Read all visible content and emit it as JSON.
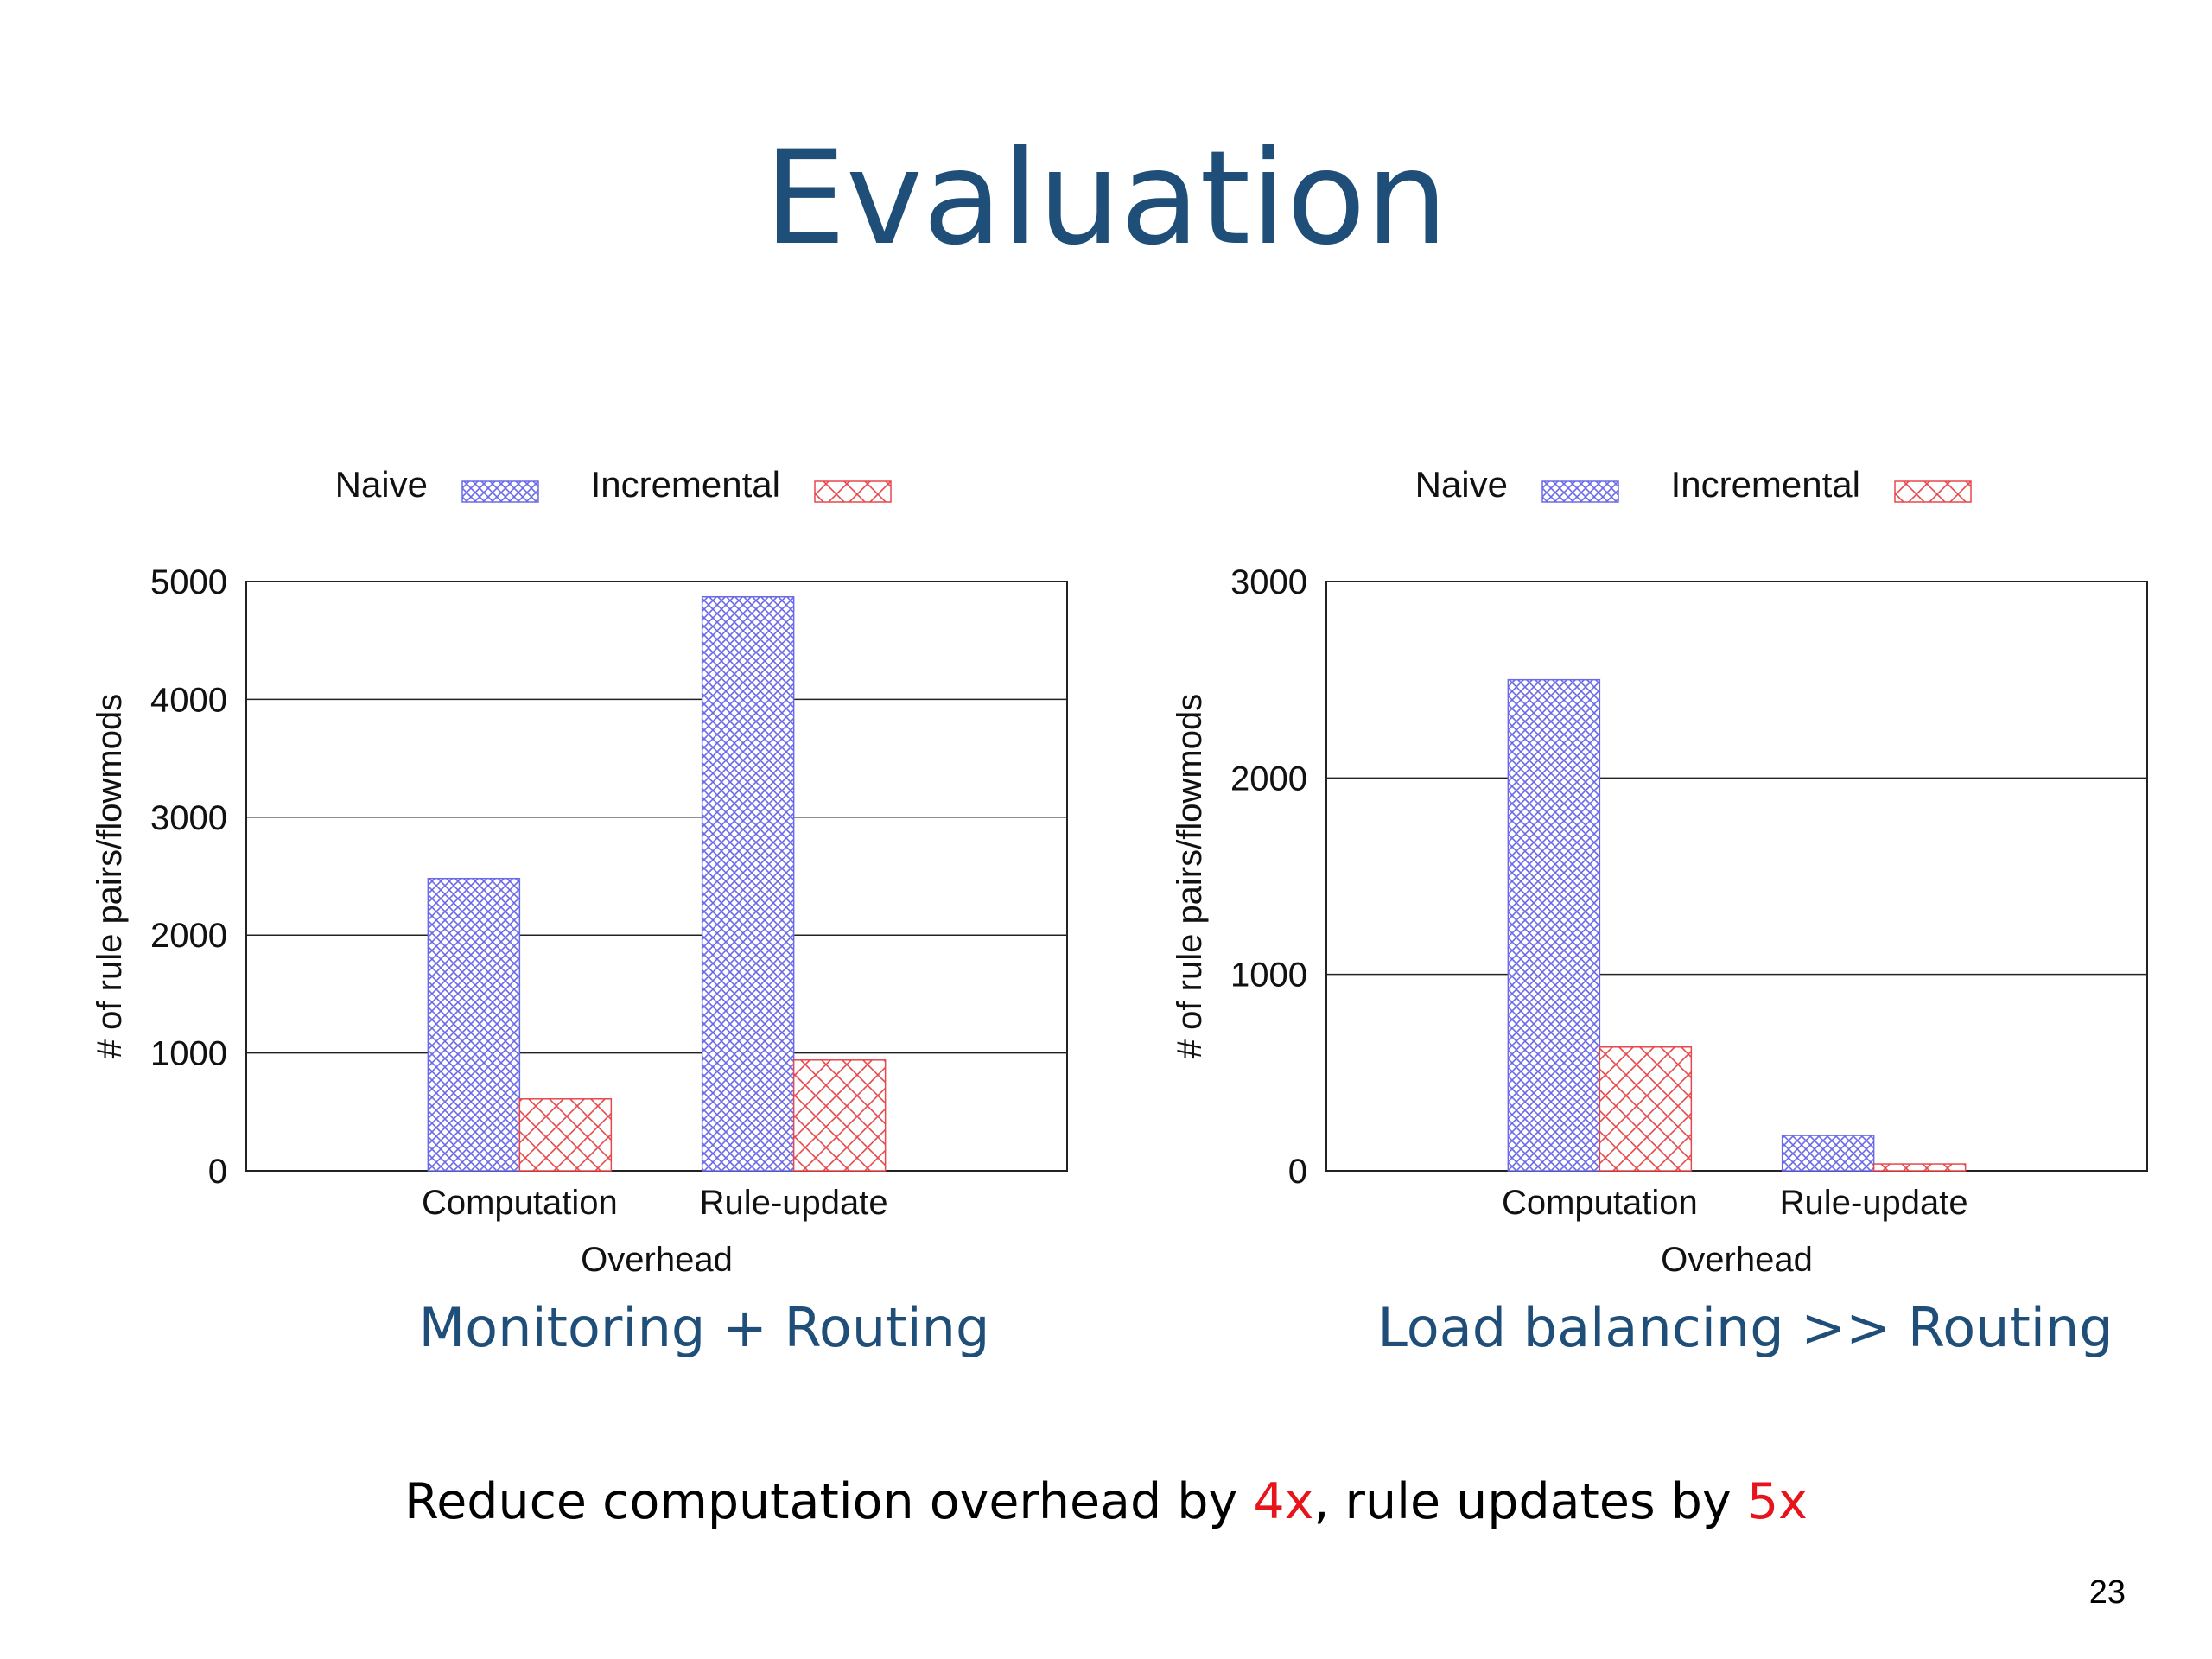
{
  "slide": {
    "title": "Evaluation",
    "summary_prefix": "Reduce computation overhead by ",
    "summary_value_1": "4x",
    "summary_middle": ", rule updates by ",
    "summary_value_2": "5x",
    "page_number": "23",
    "highlight_color": "#e8141b",
    "title_color": "#1f4e79"
  },
  "chart_data": [
    {
      "type": "bar",
      "caption": "Monitoring + Routing",
      "categories": [
        "Computation",
        "Rule-update"
      ],
      "series": [
        {
          "name": "Naive",
          "values": [
            2480,
            4870
          ],
          "color": "#6a6ae8",
          "pattern": "fine-crosshatch"
        },
        {
          "name": "Incremental",
          "values": [
            610,
            940
          ],
          "color": "#e8474b",
          "pattern": "coarse-crosshatch"
        }
      ],
      "xlabel": "Overhead",
      "ylabel": "# of rule pairs/flowmods",
      "ylim": [
        0,
        5000
      ],
      "yticks": [
        0,
        1000,
        2000,
        3000,
        4000,
        5000
      ],
      "grid": true,
      "legend": "top-center"
    },
    {
      "type": "bar",
      "caption": "Load balancing >> Routing",
      "categories": [
        "Computation",
        "Rule-update"
      ],
      "series": [
        {
          "name": "Naive",
          "values": [
            2500,
            180
          ],
          "color": "#6a6ae8",
          "pattern": "fine-crosshatch"
        },
        {
          "name": "Incremental",
          "values": [
            630,
            35
          ],
          "color": "#e8474b",
          "pattern": "coarse-crosshatch"
        }
      ],
      "xlabel": "Overhead",
      "ylabel": "# of rule pairs/flowmods",
      "ylim": [
        0,
        3000
      ],
      "yticks": [
        0,
        1000,
        2000,
        3000
      ],
      "grid": true,
      "legend": "top-center"
    }
  ]
}
